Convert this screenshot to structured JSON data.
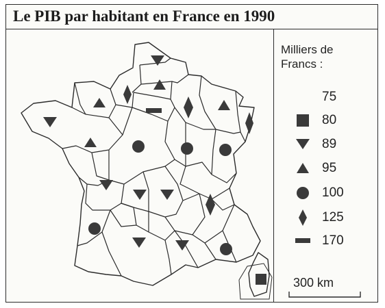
{
  "title": "Le PIB par habitant en France en 1990",
  "legend": {
    "heading_line1": "Milliers de",
    "heading_line2": "Francs :",
    "items": [
      {
        "value": "75",
        "symbol": "none"
      },
      {
        "value": "80",
        "symbol": "square"
      },
      {
        "value": "89",
        "symbol": "triangle-down"
      },
      {
        "value": "95",
        "symbol": "triangle-up"
      },
      {
        "value": "100",
        "symbol": "circle"
      },
      {
        "value": "125",
        "symbol": "diamond"
      },
      {
        "value": "170",
        "symbol": "bar"
      }
    ]
  },
  "scale": {
    "label": "300 km"
  },
  "colors": {
    "border": "#2b2b2b",
    "symbol": "#3a3a3a"
  }
}
